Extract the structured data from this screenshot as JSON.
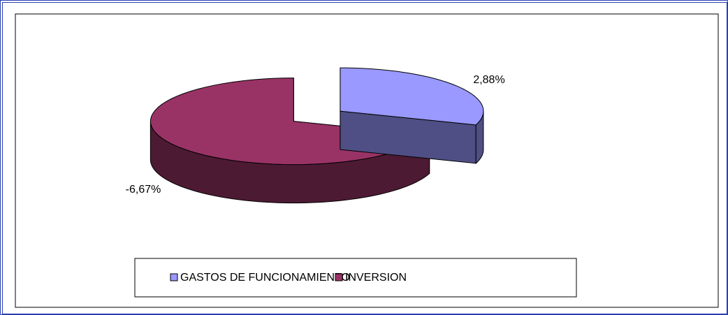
{
  "chart_data": {
    "type": "pie",
    "categories": [
      "GASTOS DE FUNCIONAMIENTO",
      "INVERSION"
    ],
    "values": [
      2.88,
      -6.67
    ],
    "value_labels": [
      "2,88%",
      "-6,67%"
    ],
    "colors": [
      "#9999ff",
      "#993366"
    ],
    "side_colors": [
      "#4f4f85",
      "#4d1a33"
    ],
    "three_d": true,
    "legend": "bottom"
  }
}
